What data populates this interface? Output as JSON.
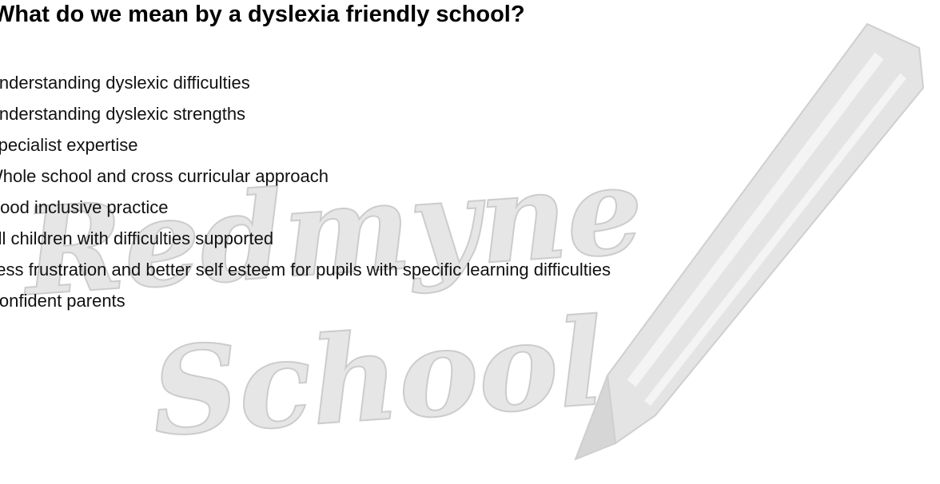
{
  "header": {
    "title": "What do we mean by a dyslexia friendly school?"
  },
  "items": [
    "Understanding dyslexic difficulties",
    "Understanding dyslexic strengths",
    "Specialist expertise",
    "Whole school and cross curricular approach",
    "Good inclusive practice",
    "All children with difficulties supported",
    "Less frustration and better self esteem for pupils with specific learning difficulties",
    "Confident parents"
  ],
  "watermark": {
    "line1": "Redmyne",
    "line2": "School"
  }
}
